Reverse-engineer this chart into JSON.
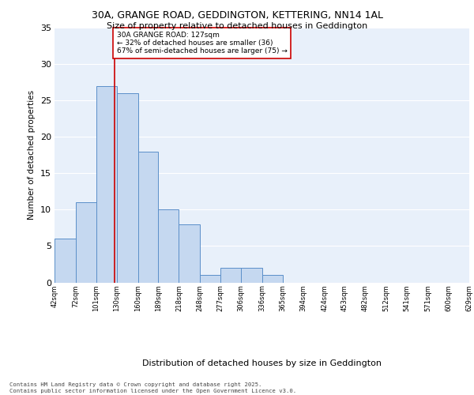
{
  "title_line1": "30A, GRANGE ROAD, GEDDINGTON, KETTERING, NN14 1AL",
  "title_line2": "Size of property relative to detached houses in Geddington",
  "xlabel": "Distribution of detached houses by size in Geddington",
  "ylabel": "Number of detached properties",
  "bar_values": [
    6,
    11,
    27,
    26,
    18,
    10,
    8,
    1,
    2,
    2,
    1,
    0,
    0,
    0,
    0,
    0,
    0,
    0,
    0,
    0
  ],
  "bin_labels": [
    "42sqm",
    "72sqm",
    "101sqm",
    "130sqm",
    "160sqm",
    "189sqm",
    "218sqm",
    "248sqm",
    "277sqm",
    "306sqm",
    "336sqm",
    "365sqm",
    "394sqm",
    "424sqm",
    "453sqm",
    "482sqm",
    "512sqm",
    "541sqm",
    "571sqm",
    "600sqm",
    "629sqm"
  ],
  "bin_edges": [
    42,
    72,
    101,
    130,
    160,
    189,
    218,
    248,
    277,
    306,
    336,
    365,
    394,
    424,
    453,
    482,
    512,
    541,
    571,
    600,
    629
  ],
  "bar_color": "#c5d8f0",
  "bar_edgecolor": "#5b8fc9",
  "bg_color": "#e8f0fa",
  "grid_color": "#ffffff",
  "vline_x": 127,
  "vline_color": "#cc0000",
  "annotation_text": "30A GRANGE ROAD: 127sqm\n← 32% of detached houses are smaller (36)\n67% of semi-detached houses are larger (75) →",
  "annotation_box_color": "#ffffff",
  "annotation_box_edgecolor": "#cc0000",
  "ylim": [
    0,
    35
  ],
  "yticks": [
    0,
    5,
    10,
    15,
    20,
    25,
    30,
    35
  ],
  "footer_line1": "Contains HM Land Registry data © Crown copyright and database right 2025.",
  "footer_line2": "Contains public sector information licensed under the Open Government Licence v3.0."
}
